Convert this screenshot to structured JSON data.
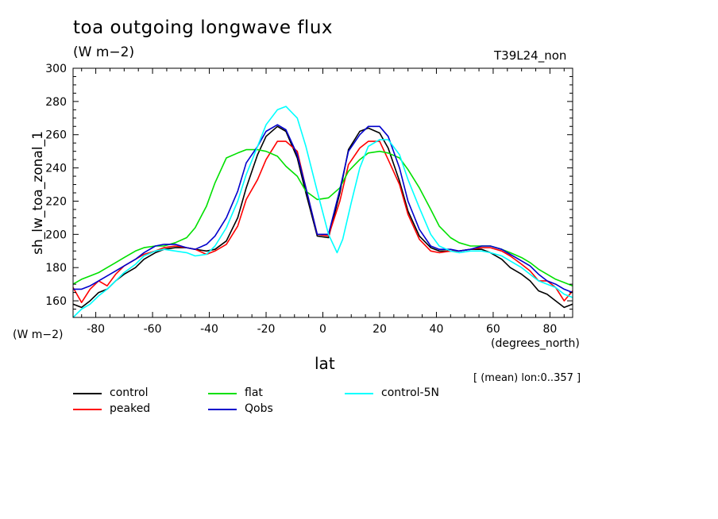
{
  "chart_data": {
    "type": "line",
    "title": "toa outgoing longwave flux",
    "units_label": "(W m−2)",
    "run_label": "T39L24_non",
    "ylabel": "sh_lw_toa_zonal_1",
    "y_units": "(W m−2)",
    "xlabel": "lat",
    "x_units": "(degrees_north)",
    "meta": "[ (mean) lon:0..357 ]",
    "xlim": [
      -88,
      88
    ],
    "ylim": [
      150,
      300
    ],
    "xticks": [
      -80,
      -60,
      -40,
      -20,
      0,
      20,
      40,
      60,
      80
    ],
    "yticks": [
      160,
      180,
      200,
      220,
      240,
      260,
      280,
      300
    ],
    "grid": false,
    "legend_placement": "bottom",
    "series": [
      {
        "name": "control",
        "color": "#000000",
        "x": [
          -88,
          -85,
          -82,
          -79,
          -76,
          -73,
          -70,
          -66,
          -63,
          -59,
          -56,
          -52,
          -48,
          -45,
          -41,
          -38,
          -34,
          -30,
          -27,
          -23,
          -20,
          -16,
          -13,
          -9,
          -6,
          -2,
          2,
          6,
          9,
          13,
          16,
          20,
          23,
          27,
          30,
          34,
          38,
          41,
          45,
          48,
          52,
          56,
          59,
          63,
          66,
          70,
          73,
          76,
          79,
          82,
          85,
          88
        ],
        "y": [
          158,
          156,
          160,
          165,
          167,
          172,
          176,
          180,
          185,
          189,
          191,
          192,
          192,
          191,
          190,
          191,
          196,
          210,
          228,
          248,
          259,
          265,
          262,
          246,
          225,
          199,
          198,
          225,
          251,
          262,
          264,
          261,
          252,
          232,
          214,
          199,
          192,
          190,
          190,
          190,
          191,
          191,
          189,
          185,
          180,
          176,
          172,
          166,
          164,
          160,
          156,
          158
        ]
      },
      {
        "name": "peaked",
        "color": "#ff0000",
        "x": [
          -88,
          -85,
          -82,
          -79,
          -76,
          -73,
          -70,
          -66,
          -63,
          -59,
          -56,
          -52,
          -48,
          -45,
          -41,
          -38,
          -34,
          -30,
          -27,
          -23,
          -20,
          -16,
          -13,
          -9,
          -6,
          -2,
          2,
          6,
          9,
          13,
          16,
          20,
          23,
          27,
          30,
          34,
          38,
          41,
          45,
          48,
          52,
          56,
          59,
          63,
          66,
          70,
          73,
          76,
          79,
          82,
          85,
          88
        ],
        "y": [
          168,
          159,
          167,
          172,
          169,
          176,
          181,
          185,
          188,
          190,
          192,
          193,
          192,
          191,
          188,
          190,
          194,
          205,
          221,
          233,
          245,
          256,
          256,
          250,
          228,
          200,
          199,
          220,
          242,
          252,
          256,
          256,
          245,
          230,
          212,
          197,
          190,
          189,
          190,
          190,
          191,
          192,
          192,
          190,
          187,
          182,
          178,
          172,
          172,
          168,
          160,
          166
        ]
      },
      {
        "name": "flat",
        "color": "#00e000",
        "x": [
          -88,
          -85,
          -82,
          -79,
          -76,
          -73,
          -70,
          -66,
          -63,
          -59,
          -56,
          -52,
          -48,
          -45,
          -41,
          -38,
          -34,
          -30,
          -27,
          -23,
          -20,
          -16,
          -13,
          -9,
          -6,
          -2,
          2,
          6,
          9,
          13,
          16,
          20,
          23,
          27,
          30,
          34,
          38,
          41,
          45,
          48,
          52,
          56,
          59,
          63,
          66,
          70,
          73,
          76,
          79,
          82,
          85,
          88
        ],
        "y": [
          170,
          173,
          175,
          177,
          180,
          183,
          186,
          190,
          192,
          193,
          193,
          195,
          198,
          204,
          217,
          231,
          246,
          249,
          251,
          251,
          250,
          247,
          241,
          235,
          226,
          221,
          222,
          228,
          238,
          245,
          249,
          250,
          249,
          246,
          239,
          228,
          215,
          205,
          198,
          195,
          193,
          193,
          193,
          191,
          189,
          186,
          183,
          179,
          176,
          173,
          171,
          169
        ]
      },
      {
        "name": "Qobs",
        "color": "#0000cc",
        "x": [
          -88,
          -85,
          -82,
          -79,
          -76,
          -73,
          -70,
          -66,
          -63,
          -59,
          -56,
          -52,
          -48,
          -45,
          -41,
          -38,
          -34,
          -30,
          -27,
          -23,
          -20,
          -16,
          -13,
          -9,
          -6,
          -2,
          2,
          6,
          9,
          13,
          16,
          20,
          23,
          27,
          30,
          34,
          38,
          41,
          45,
          48,
          52,
          56,
          59,
          63,
          66,
          70,
          73,
          76,
          79,
          82,
          85,
          88
        ],
        "y": [
          167,
          167,
          169,
          172,
          175,
          178,
          181,
          185,
          189,
          193,
          194,
          194,
          192,
          191,
          194,
          199,
          210,
          226,
          243,
          253,
          262,
          266,
          263,
          248,
          228,
          200,
          200,
          227,
          250,
          260,
          265,
          265,
          259,
          240,
          220,
          203,
          193,
          191,
          191,
          190,
          191,
          193,
          193,
          191,
          188,
          184,
          181,
          176,
          172,
          170,
          167,
          165
        ]
      },
      {
        "name": "control-5N",
        "color": "#00ffff",
        "x": [
          -88,
          -85,
          -82,
          -79,
          -76,
          -73,
          -70,
          -66,
          -63,
          -59,
          -56,
          -52,
          -48,
          -45,
          -41,
          -38,
          -34,
          -30,
          -27,
          -23,
          -20,
          -16,
          -13,
          -9,
          -6,
          -2,
          2,
          5,
          7,
          10,
          13,
          16,
          20,
          23,
          27,
          30,
          34,
          38,
          41,
          45,
          48,
          52,
          56,
          59,
          63,
          66,
          70,
          73,
          76,
          79,
          82,
          85,
          88
        ],
        "y": [
          150,
          155,
          158,
          163,
          167,
          172,
          177,
          182,
          187,
          190,
          191,
          190,
          189,
          187,
          188,
          193,
          204,
          220,
          236,
          253,
          266,
          275,
          277,
          270,
          253,
          226,
          200,
          189,
          197,
          219,
          240,
          253,
          257,
          257,
          248,
          233,
          216,
          200,
          193,
          190,
          189,
          190,
          190,
          189,
          187,
          184,
          180,
          176,
          172,
          170,
          168,
          164,
          162
        ]
      }
    ]
  }
}
